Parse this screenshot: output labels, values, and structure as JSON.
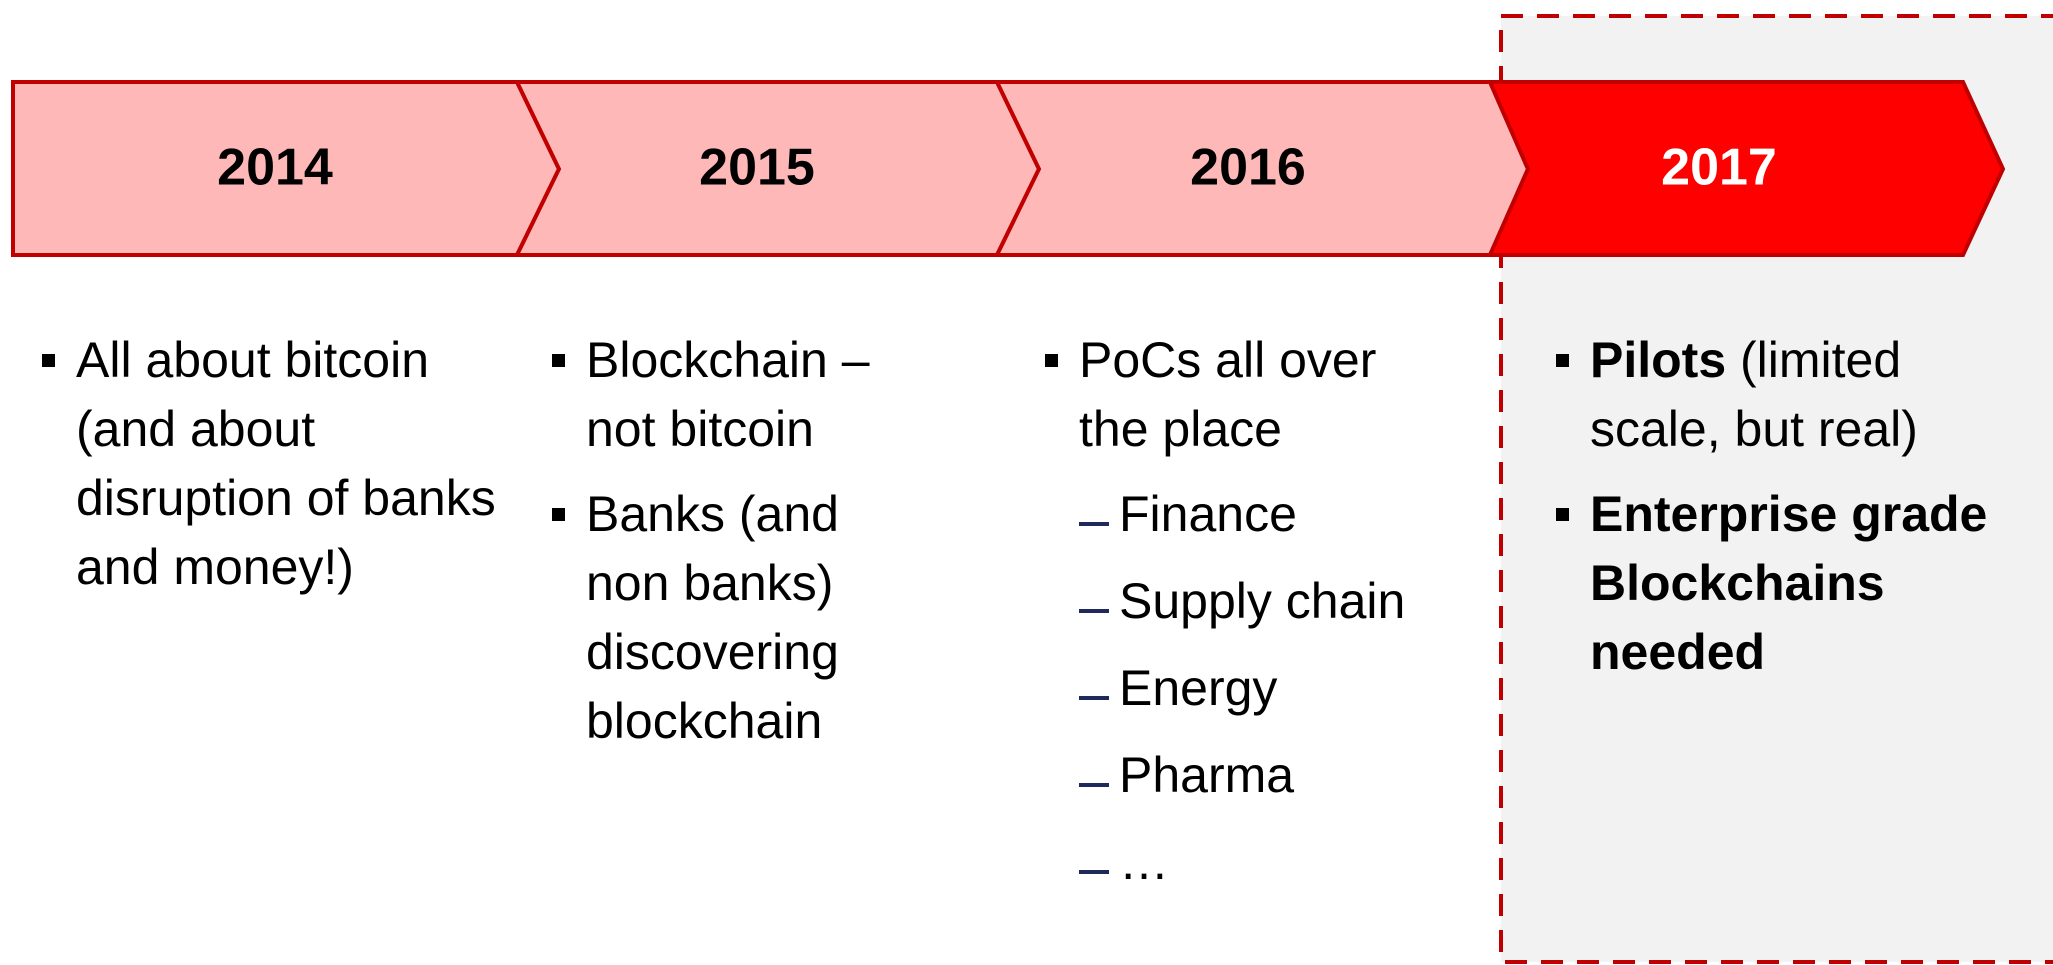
{
  "columns": [
    {
      "year": "2014",
      "bullets": [
        {
          "text": "All about bitcoin (and about disruption of banks and money!)"
        }
      ]
    },
    {
      "year": "2015",
      "bullets": [
        {
          "text": "Blockchain – not bitcoin"
        },
        {
          "text": "Banks (and non banks) discovering blockchain"
        }
      ]
    },
    {
      "year": "2016",
      "bullets": [
        {
          "text": "PoCs all over the place"
        }
      ],
      "subitems": [
        "Finance",
        "Supply chain",
        "Energy",
        "Pharma",
        "…"
      ]
    },
    {
      "year": "2017",
      "bullets": [
        {
          "bold": "Pilots",
          "text": " (limited scale, but real)"
        },
        {
          "bold": "Enterprise grade Blockchains needed"
        }
      ]
    }
  ]
}
